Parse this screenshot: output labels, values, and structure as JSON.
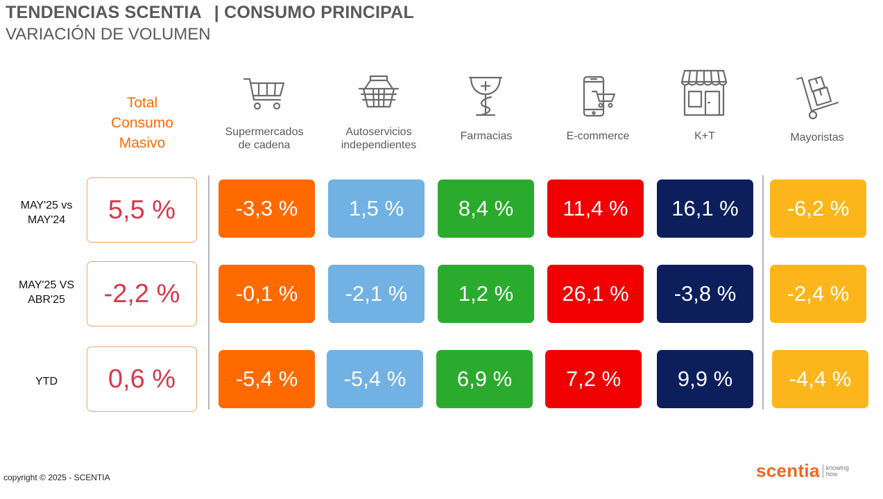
{
  "header": {
    "title_left": "TENDENCIAS SCENTIA",
    "title_right": "| CONSUMO PRINCIPAL",
    "subtitle": "VARIACIÓN DE VOLUMEN"
  },
  "total_header": [
    "Total",
    "Consumo",
    "Masivo"
  ],
  "channels": [
    {
      "lines": [
        "Supermercados",
        "de cadena"
      ],
      "icon": "shopping-cart-icon"
    },
    {
      "lines": [
        "Autoservicios",
        "independientes"
      ],
      "icon": "basket-icon"
    },
    {
      "lines": [
        "Farmacias"
      ],
      "icon": "pharmacy-icon"
    },
    {
      "lines": [
        "E-commerce"
      ],
      "icon": "mobile-cart-icon"
    },
    {
      "lines": [
        "K+T"
      ],
      "icon": "store-icon"
    },
    {
      "lines": [
        "Mayoristas"
      ],
      "icon": "hand-truck-icon"
    }
  ],
  "rows": [
    {
      "label": [
        "MAY'25 vs",
        "MAY'24"
      ],
      "total": "5,5 %",
      "values": [
        "-3,3 %",
        "1,5 %",
        "8,4 %",
        "11,4 %",
        "16,1 %",
        "-6,2 %"
      ]
    },
    {
      "label": [
        "MAY'25 VS",
        "ABR'25"
      ],
      "total": "-2,2 %",
      "values": [
        "-0,1 %",
        "-2,1 %",
        "1,2 %",
        "26,1 %",
        "-3,8 %",
        "-2,4 %"
      ]
    },
    {
      "label": [
        "YTD"
      ],
      "total": "0,6 %",
      "values": [
        "-5,4 %",
        "-5,4 %",
        "6,9 %",
        "7,2 %",
        "9,9 %",
        "-4,4 %"
      ]
    }
  ],
  "colors": {
    "orange": "#ff6a00",
    "blue": "#72b1e3",
    "green": "#2aab2d",
    "red": "#f00000",
    "navy": "#0d1e5c",
    "yellow": "#fcb61c",
    "total_text": "#d8374a"
  },
  "footer": {
    "copyright": "copyright © 2025 - SCENTIA",
    "logo_word": "scentia",
    "logo_tag": [
      "knowing",
      "how"
    ]
  }
}
